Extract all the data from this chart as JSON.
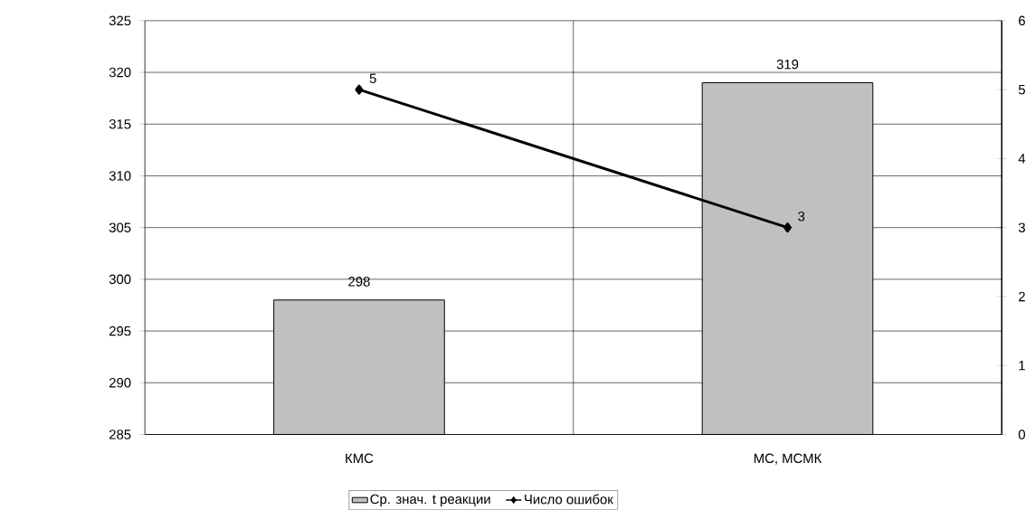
{
  "chart_data": {
    "type": "bar",
    "categories": [
      "КМС",
      "МС, МСМК"
    ],
    "series": [
      {
        "name": "Ср. знач. t реакции",
        "color": "#c0c0c0",
        "values": [
          298,
          319
        ]
      },
      {
        "name": "Число ошибок",
        "type": "line",
        "axis": "y2",
        "color": "#000000",
        "values": [
          5,
          3
        ]
      }
    ],
    "ylim": [
      285,
      325
    ],
    "yticks": [
      285,
      290,
      295,
      300,
      305,
      310,
      315,
      320,
      325
    ],
    "y2lim": [
      0,
      6
    ],
    "y2ticks": [
      0,
      1,
      2,
      3,
      4,
      5,
      6
    ],
    "grid": true,
    "legend": "bottom",
    "data_labels": true,
    "marker": "diamond",
    "line_style": "solid"
  }
}
